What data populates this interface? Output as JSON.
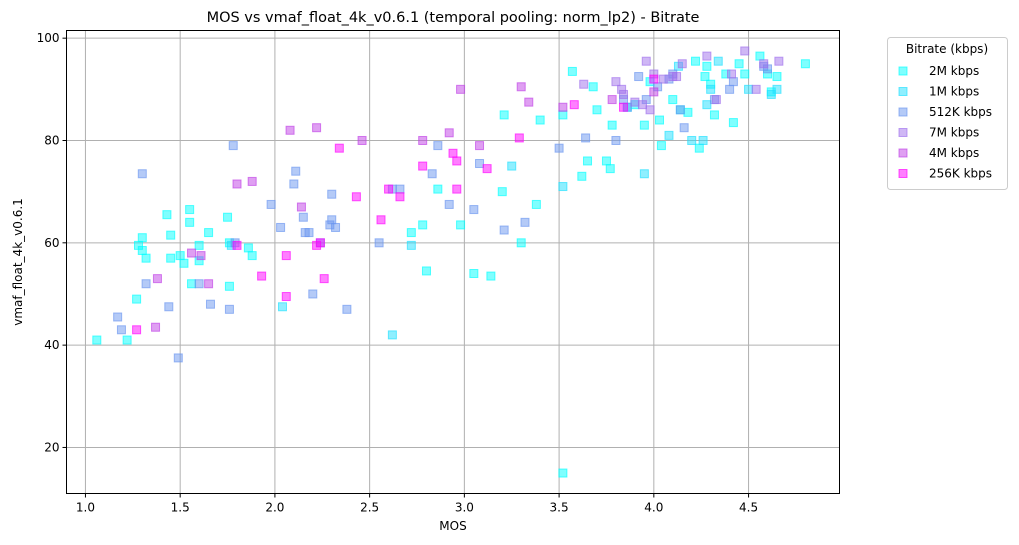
{
  "chart_data": {
    "type": "scatter",
    "title": "MOS vs vmaf_float_4k_v0.6.1 (temporal pooling: norm_lp2) - Bitrate",
    "xlabel": "MOS",
    "ylabel": "vmaf_float_4k_v0.6.1",
    "xlim": [
      0.9,
      4.98
    ],
    "ylim": [
      11,
      101.5
    ],
    "xticks": [
      "1.0",
      "1.5",
      "2.0",
      "2.5",
      "3.0",
      "3.5",
      "4.0",
      "4.5"
    ],
    "yticks": [
      "20",
      "40",
      "60",
      "80",
      "100"
    ],
    "grid": true,
    "marker": "square",
    "legend": {
      "title": "Bitrate (kbps)",
      "placement": "outside-top-right"
    },
    "series": [
      {
        "name": "2M kbps",
        "color": "#00FFFF",
        "points": [
          [
            1.06,
            41
          ],
          [
            1.22,
            41
          ],
          [
            1.27,
            49
          ],
          [
            1.28,
            59.5
          ],
          [
            1.3,
            61
          ],
          [
            1.3,
            58.5
          ],
          [
            1.32,
            57
          ],
          [
            1.43,
            65.5
          ],
          [
            1.45,
            61.5
          ],
          [
            1.45,
            57
          ],
          [
            1.5,
            57.5
          ],
          [
            1.52,
            56
          ],
          [
            1.55,
            64
          ],
          [
            1.55,
            66.5
          ],
          [
            1.56,
            52
          ],
          [
            1.6,
            59.5
          ],
          [
            1.6,
            56.5
          ],
          [
            1.65,
            62
          ],
          [
            1.75,
            65
          ],
          [
            1.76,
            51.5
          ],
          [
            1.76,
            60
          ],
          [
            1.86,
            59
          ],
          [
            1.88,
            57.5
          ],
          [
            2.72,
            62
          ],
          [
            2.78,
            63.5
          ],
          [
            2.8,
            54.5
          ],
          [
            2.86,
            70.5
          ],
          [
            2.98,
            63.5
          ],
          [
            3.05,
            54
          ],
          [
            3.14,
            53.5
          ],
          [
            3.2,
            70
          ],
          [
            3.21,
            85
          ],
          [
            3.3,
            60
          ],
          [
            3.38,
            67.5
          ],
          [
            3.4,
            84
          ],
          [
            3.52,
            15
          ],
          [
            3.52,
            85
          ],
          [
            3.57,
            93.5
          ],
          [
            3.62,
            73
          ],
          [
            3.65,
            76
          ],
          [
            3.68,
            90.5
          ],
          [
            3.7,
            86
          ],
          [
            3.75,
            76
          ],
          [
            3.77,
            74.5
          ],
          [
            3.78,
            83
          ],
          [
            3.86,
            86.5
          ],
          [
            3.9,
            87
          ],
          [
            3.95,
            83
          ],
          [
            3.98,
            91.5
          ],
          [
            4.03,
            84
          ],
          [
            4.04,
            79
          ],
          [
            4.1,
            88
          ],
          [
            4.14,
            86
          ],
          [
            4.18,
            85.5
          ],
          [
            4.22,
            95.5
          ],
          [
            4.24,
            78.5
          ],
          [
            4.27,
            92.5
          ],
          [
            4.28,
            94.5
          ],
          [
            4.3,
            91
          ],
          [
            4.32,
            85
          ],
          [
            4.38,
            93
          ],
          [
            4.42,
            83.5
          ],
          [
            4.45,
            95
          ],
          [
            4.48,
            93
          ],
          [
            4.56,
            96.5
          ],
          [
            4.6,
            93
          ],
          [
            4.62,
            89.5
          ],
          [
            4.65,
            92.5
          ],
          [
            4.8,
            95
          ]
        ]
      },
      {
        "name": "1M kbps",
        "color": "#1FE0FF",
        "points": [
          [
            1.77,
            59.5
          ],
          [
            2.04,
            47.5
          ],
          [
            2.62,
            42
          ],
          [
            2.72,
            59.5
          ],
          [
            3.25,
            75
          ],
          [
            3.52,
            71
          ],
          [
            3.95,
            73.5
          ],
          [
            4.08,
            81
          ],
          [
            4.13,
            94.5
          ],
          [
            4.2,
            80
          ],
          [
            4.26,
            80
          ],
          [
            4.28,
            87
          ],
          [
            4.3,
            90
          ],
          [
            4.34,
            95.5
          ],
          [
            4.5,
            90
          ],
          [
            4.62,
            89
          ],
          [
            4.65,
            90
          ]
        ]
      },
      {
        "name": "512K kbps",
        "color": "#6A95F0",
        "points": [
          [
            1.17,
            45.5
          ],
          [
            1.19,
            43
          ],
          [
            1.3,
            73.5
          ],
          [
            1.32,
            52
          ],
          [
            1.44,
            47.5
          ],
          [
            1.49,
            37.5
          ],
          [
            1.6,
            52
          ],
          [
            1.66,
            48
          ],
          [
            1.76,
            47
          ],
          [
            1.78,
            79
          ],
          [
            1.79,
            60
          ],
          [
            1.98,
            67.5
          ],
          [
            2.03,
            63
          ],
          [
            2.1,
            71.5
          ],
          [
            2.11,
            74
          ],
          [
            2.15,
            65
          ],
          [
            2.16,
            62
          ],
          [
            2.18,
            62
          ],
          [
            2.2,
            50
          ],
          [
            2.24,
            60
          ],
          [
            2.29,
            63.5
          ],
          [
            2.3,
            64.5
          ],
          [
            2.3,
            69.5
          ],
          [
            2.32,
            63
          ],
          [
            2.38,
            47
          ],
          [
            2.55,
            60
          ],
          [
            2.62,
            70.5
          ],
          [
            2.66,
            70.5
          ],
          [
            2.83,
            73.5
          ],
          [
            2.86,
            79
          ],
          [
            2.92,
            67.5
          ],
          [
            3.05,
            66.5
          ],
          [
            3.08,
            75.5
          ],
          [
            3.21,
            62.5
          ],
          [
            3.32,
            64
          ],
          [
            3.5,
            78.5
          ],
          [
            3.64,
            80.5
          ],
          [
            3.8,
            80
          ],
          [
            3.84,
            88
          ],
          [
            3.86,
            86.5
          ],
          [
            3.92,
            92.5
          ],
          [
            3.96,
            88
          ],
          [
            4.02,
            90.5
          ],
          [
            4.08,
            92
          ],
          [
            4.1,
            93
          ],
          [
            4.14,
            86
          ],
          [
            4.16,
            82.5
          ],
          [
            4.32,
            88
          ],
          [
            4.4,
            90
          ],
          [
            4.42,
            91.5
          ],
          [
            4.58,
            94.5
          ],
          [
            4.6,
            94
          ]
        ]
      },
      {
        "name": "7M kbps",
        "color": "#A070EC",
        "points": [
          [
            3.63,
            91
          ],
          [
            3.8,
            91.5
          ],
          [
            3.83,
            90
          ],
          [
            3.84,
            89
          ],
          [
            3.9,
            87.5
          ],
          [
            3.94,
            87
          ],
          [
            3.96,
            95.5
          ],
          [
            3.98,
            86
          ],
          [
            4.0,
            93
          ],
          [
            4.05,
            92
          ],
          [
            4.1,
            92.5
          ],
          [
            4.12,
            92.5
          ],
          [
            4.15,
            95
          ],
          [
            4.28,
            96.5
          ],
          [
            4.33,
            88
          ],
          [
            4.41,
            93
          ],
          [
            4.48,
            97.5
          ],
          [
            4.54,
            90
          ],
          [
            4.58,
            95
          ],
          [
            4.66,
            95.5
          ]
        ]
      },
      {
        "name": "4M kbps",
        "color": "#C040E6",
        "points": [
          [
            1.37,
            43.5
          ],
          [
            1.38,
            53
          ],
          [
            1.56,
            58
          ],
          [
            1.61,
            57.5
          ],
          [
            1.65,
            52
          ],
          [
            1.8,
            71.5
          ],
          [
            1.88,
            72
          ],
          [
            2.08,
            82
          ],
          [
            2.14,
            67
          ],
          [
            2.22,
            82.5
          ],
          [
            2.46,
            80
          ],
          [
            2.78,
            80
          ],
          [
            2.92,
            81.5
          ],
          [
            2.98,
            90
          ],
          [
            3.08,
            79
          ],
          [
            3.3,
            90.5
          ],
          [
            3.34,
            87.5
          ],
          [
            3.52,
            86.5
          ],
          [
            3.78,
            88
          ],
          [
            4.0,
            89.5
          ]
        ]
      },
      {
        "name": "256K kbps",
        "color": "#FF00FF",
        "points": [
          [
            1.27,
            43
          ],
          [
            1.8,
            59.5
          ],
          [
            1.93,
            53.5
          ],
          [
            2.06,
            49.5
          ],
          [
            2.06,
            57.5
          ],
          [
            2.22,
            59.5
          ],
          [
            2.24,
            60
          ],
          [
            2.26,
            53
          ],
          [
            2.34,
            78.5
          ],
          [
            2.43,
            69
          ],
          [
            2.56,
            64.5
          ],
          [
            2.6,
            70.5
          ],
          [
            2.66,
            69
          ],
          [
            2.78,
            75
          ],
          [
            2.94,
            77.5
          ],
          [
            2.96,
            76
          ],
          [
            2.96,
            70.5
          ],
          [
            3.12,
            74.5
          ],
          [
            3.29,
            80.5
          ],
          [
            3.58,
            87
          ],
          [
            3.84,
            86.5
          ],
          [
            4.0,
            92
          ]
        ]
      }
    ]
  }
}
